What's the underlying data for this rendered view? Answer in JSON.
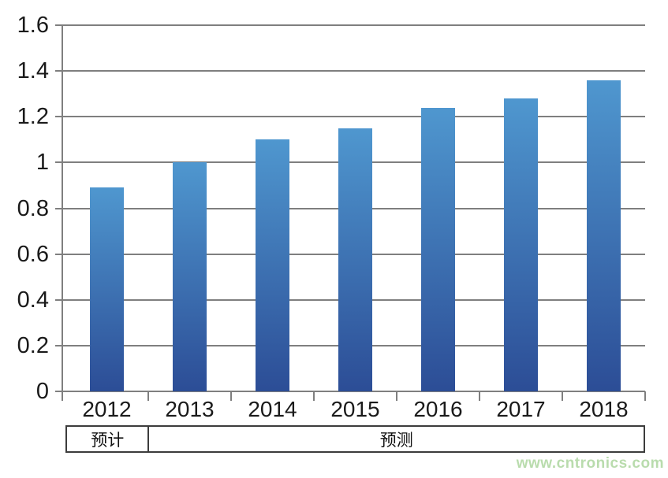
{
  "chart_data": {
    "type": "bar",
    "categories": [
      "2012",
      "2013",
      "2014",
      "2015",
      "2016",
      "2017",
      "2018"
    ],
    "values": [
      0.89,
      1.0,
      1.1,
      1.15,
      1.24,
      1.28,
      1.36
    ],
    "title": "",
    "xlabel": "",
    "ylabel": "",
    "ylim": [
      0,
      1.6
    ],
    "ytick_values": [
      0,
      0.2,
      0.4,
      0.6,
      0.8,
      1,
      1.2,
      1.4,
      1.6
    ],
    "ytick_labels": [
      "0",
      "0.2",
      "0.4",
      "0.6",
      "0.8",
      "1",
      "1.2",
      "1.4",
      "1.6"
    ],
    "grid": true,
    "legend": false,
    "period_groups": [
      {
        "label": "预计",
        "span": 1
      },
      {
        "label": "预测",
        "span": 6
      }
    ],
    "colors": {
      "bar_gradient_top": "#4f97cf",
      "bar_gradient_bottom": "#2c4d96",
      "gridline": "#7f7f7f",
      "axis": "#7f7f7f",
      "text": "#1a1a1a",
      "table_border": "#3c3c3c"
    }
  },
  "watermark": {
    "text": "www.cntronics.com",
    "color": "#b9dcad"
  }
}
